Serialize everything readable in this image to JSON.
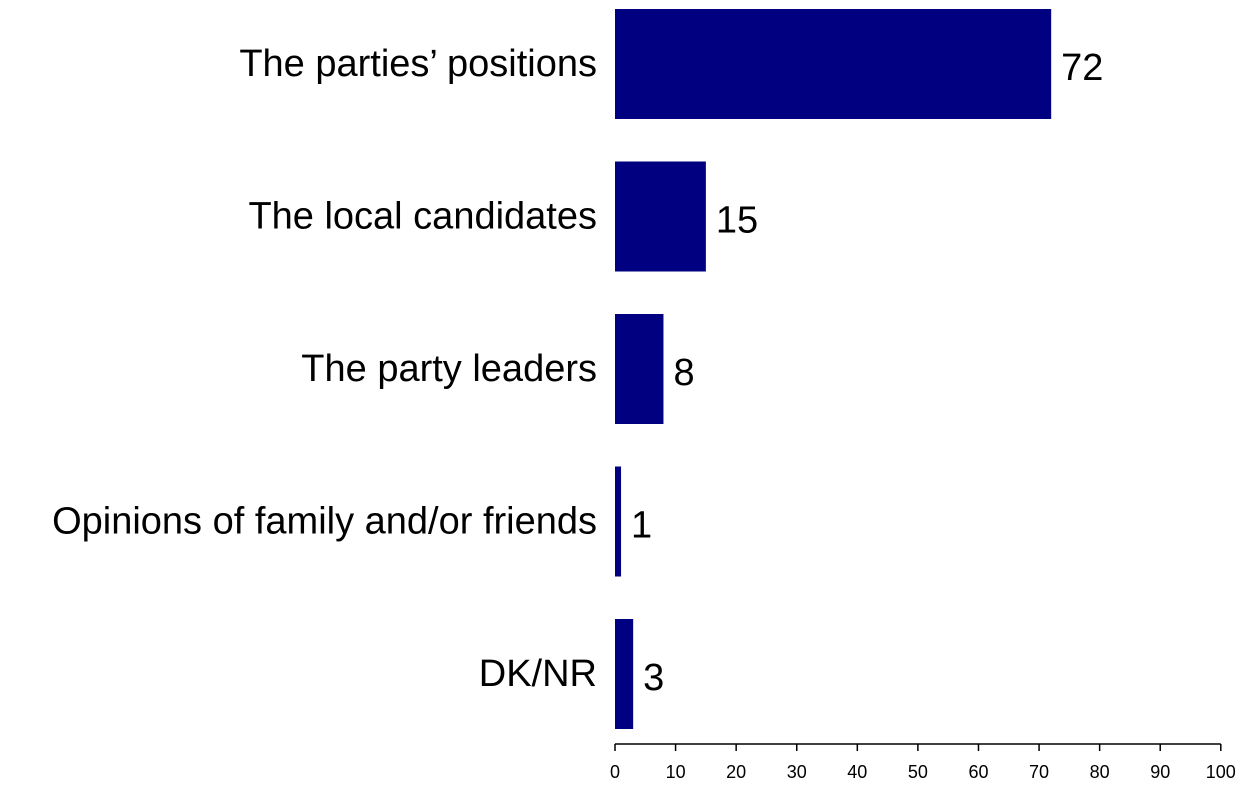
{
  "chart_data": {
    "type": "bar",
    "orientation": "horizontal",
    "title": "",
    "xlabel": "",
    "ylabel": "",
    "categories": [
      "The parties’ positions",
      "The local candidates",
      "The party leaders",
      "Opinions of family and/or friends",
      "DK/NR"
    ],
    "values": [
      72,
      15,
      8,
      1,
      3
    ],
    "value_labels": [
      "72",
      "15",
      "8",
      "1",
      "3"
    ],
    "xlim": [
      0,
      100
    ],
    "xticks": [
      0,
      10,
      20,
      30,
      40,
      50,
      60,
      70,
      80,
      90,
      100
    ],
    "xtick_labels": [
      "0",
      "10",
      "20",
      "30",
      "40",
      "50",
      "60",
      "70",
      "80",
      "90",
      "100"
    ],
    "grid": false,
    "legend": "none",
    "bar_color": "#000080"
  }
}
